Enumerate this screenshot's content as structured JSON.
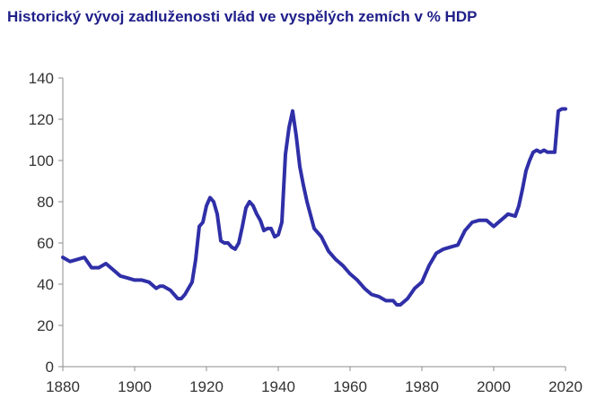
{
  "chart_data": {
    "type": "line",
    "title": "Historický vývoj zadluženosti vlád ve vyspělých zemích v % HDP",
    "xlabel": "",
    "ylabel": "",
    "xlim": [
      1880,
      2020
    ],
    "ylim": [
      0,
      140
    ],
    "x_ticks": [
      1880,
      1900,
      1920,
      1940,
      1960,
      1980,
      2000,
      2020
    ],
    "y_ticks": [
      0,
      20,
      40,
      60,
      80,
      100,
      120,
      140
    ],
    "grid": false,
    "legend": "none",
    "line_color": "#2f2fa8",
    "series": [
      {
        "x": [
          1880,
          1882,
          1884,
          1886,
          1888,
          1890,
          1892,
          1894,
          1896,
          1898,
          1900,
          1902,
          1904,
          1906,
          1907,
          1908,
          1910,
          1912,
          1913,
          1914,
          1916,
          1917,
          1918,
          1919,
          1920,
          1921,
          1922,
          1923,
          1924,
          1925,
          1926,
          1927,
          1928,
          1929,
          1930,
          1931,
          1932,
          1933,
          1934,
          1935,
          1936,
          1937,
          1938,
          1939,
          1940,
          1941,
          1942,
          1943,
          1944,
          1945,
          1946,
          1947,
          1948,
          1950,
          1952,
          1954,
          1956,
          1958,
          1960,
          1962,
          1964,
          1966,
          1968,
          1970,
          1972,
          1973,
          1974,
          1976,
          1978,
          1980,
          1982,
          1984,
          1986,
          1988,
          1990,
          1992,
          1994,
          1996,
          1998,
          2000,
          2002,
          2004,
          2006,
          2007,
          2008,
          2009,
          2010,
          2011,
          2012,
          2013,
          2014,
          2015,
          2016,
          2017,
          2018,
          2019,
          2020
        ],
        "y": [
          53,
          51,
          52,
          53,
          48,
          48,
          50,
          47,
          44,
          43,
          42,
          42,
          41,
          38,
          39,
          39,
          37,
          33,
          33,
          35,
          41,
          52,
          68,
          70,
          78,
          82,
          80,
          74,
          61,
          60,
          60,
          58,
          57,
          60,
          68,
          77,
          80,
          78,
          74,
          71,
          66,
          67,
          67,
          63,
          64,
          70,
          103,
          116,
          124,
          112,
          97,
          88,
          80,
          67,
          63,
          56,
          52,
          49,
          45,
          42,
          38,
          35,
          34,
          32,
          32,
          30,
          30,
          33,
          38,
          41,
          49,
          55,
          57,
          58,
          59,
          66,
          70,
          71,
          71,
          68,
          71,
          74,
          73,
          78,
          86,
          95,
          100,
          104,
          105,
          104,
          105,
          104,
          104,
          104,
          124,
          125,
          125
        ]
      }
    ]
  }
}
